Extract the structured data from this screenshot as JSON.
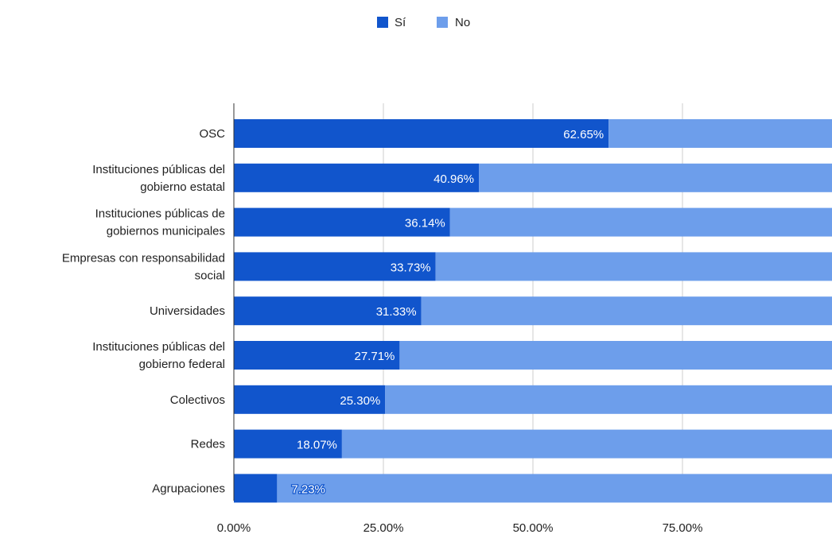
{
  "chart_data": {
    "type": "bar",
    "orientation": "horizontal",
    "stacked": "percent",
    "categories": [
      [
        "OSC"
      ],
      [
        "Instituciones públicas del",
        "gobierno estatal"
      ],
      [
        "Instituciones públicas de",
        "gobiernos municipales"
      ],
      [
        "Empresas con responsabilidad",
        "social"
      ],
      [
        "Universidades"
      ],
      [
        "Instituciones públicas del",
        "gobierno federal"
      ],
      [
        "Colectivos"
      ],
      [
        "Redes"
      ],
      [
        "Agrupaciones"
      ]
    ],
    "series": [
      {
        "name": "Sí",
        "color": "#1155cc",
        "values": [
          62.65,
          40.96,
          36.14,
          33.73,
          31.33,
          27.71,
          25.3,
          18.07,
          7.23
        ]
      },
      {
        "name": "No",
        "color": "#6d9eeb",
        "values": [
          37.35,
          59.04,
          63.86,
          66.27,
          68.67,
          72.29,
          74.7,
          81.93,
          92.77
        ]
      }
    ],
    "data_labels": [
      "62.65%",
      "40.96%",
      "36.14%",
      "33.73%",
      "31.33%",
      "27.71%",
      "25.30%",
      "18.07%",
      "7.23%"
    ],
    "x_ticks": [
      "0.00%",
      "25.00%",
      "50.00%",
      "75.00%"
    ],
    "xlim": [
      0,
      100
    ],
    "grid": true,
    "legend_position": "top"
  }
}
